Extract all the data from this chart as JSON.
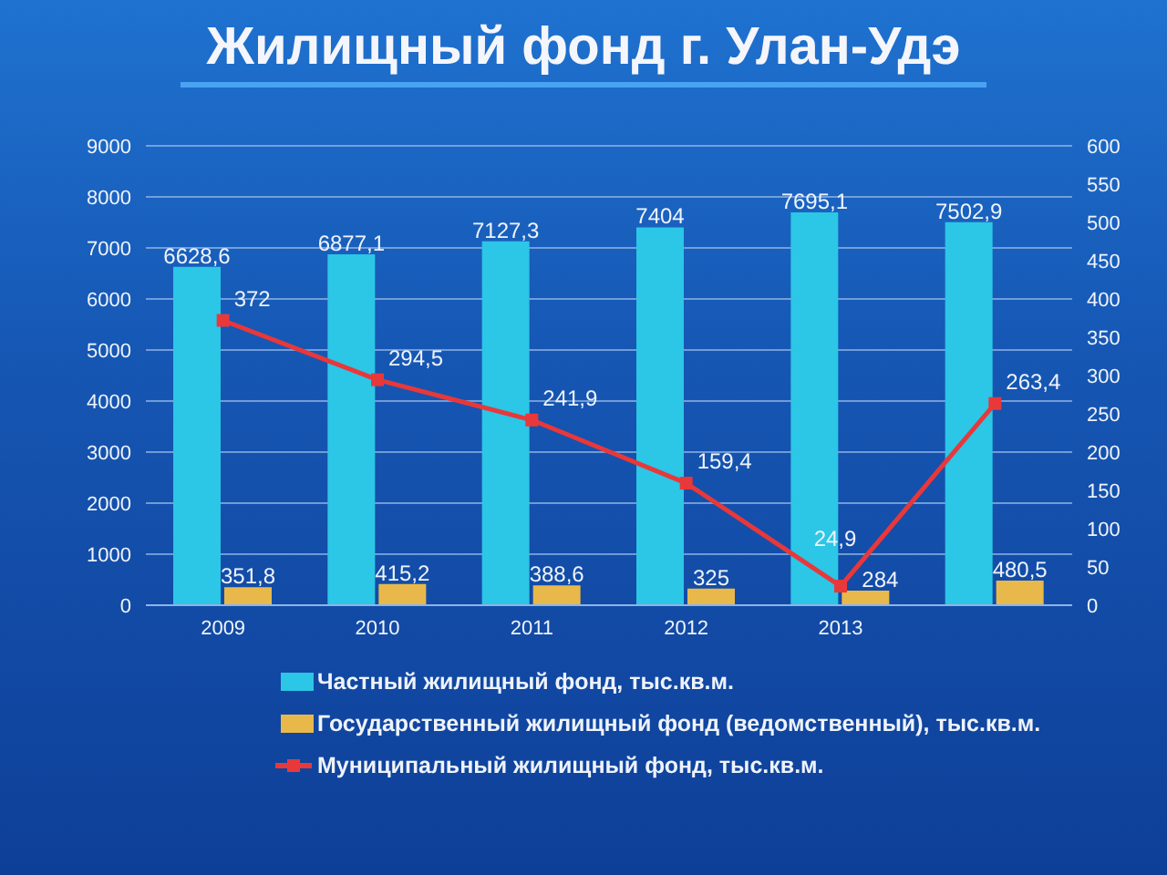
{
  "chart_data": {
    "type": "bar",
    "title": "Жилищный фонд г. Улан-Удэ",
    "categories": [
      "2009",
      "2010",
      "2011",
      "2012",
      "2013",
      null
    ],
    "series": [
      {
        "name": "Частный жилищный фонд, тыс.кв.м.",
        "color": "#2cc6e6",
        "values": [
          6628.6,
          6877.1,
          7127.3,
          7404,
          7695.1,
          7502.9
        ],
        "value_labels": [
          "6628,6",
          "6877,1",
          "7127,3",
          "7404",
          "7695,1",
          "7502,9"
        ]
      },
      {
        "name": "Государственный жилищный фонд (ведомственный), тыс.кв.м.",
        "color": "#e8b94a",
        "values": [
          351.8,
          415.2,
          388.6,
          325,
          284,
          480.5
        ],
        "value_labels": [
          "351,8",
          "415,2",
          "388,6",
          "325",
          "284",
          "480,5"
        ]
      },
      {
        "name": "Муниципальный жилищный фонд, тыс.кв.м.",
        "type": "line",
        "axis": "y2",
        "color": "#e8383a",
        "values": [
          372,
          294.5,
          241.9,
          159.4,
          24.9,
          263.4
        ],
        "value_labels": [
          "372",
          "294,5",
          "241,9",
          "159,4",
          "24,9",
          "263,4"
        ]
      }
    ],
    "ylim": [
      0,
      9000
    ],
    "yticks": [
      0,
      1000,
      2000,
      3000,
      4000,
      5000,
      6000,
      7000,
      8000,
      9000
    ],
    "y2lim": [
      0,
      600
    ],
    "y2ticks": [
      0,
      50,
      100,
      150,
      200,
      250,
      300,
      350,
      400,
      450,
      500,
      550,
      600
    ],
    "grid": "y",
    "legend": "bottom",
    "marker": "square"
  }
}
